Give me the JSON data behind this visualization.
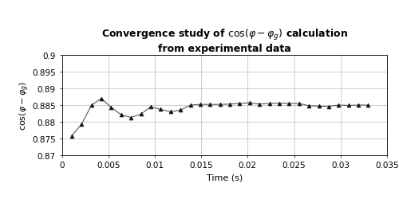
{
  "title": "Convergence study of cos(φ − φg) calculation\nfrom experimental data",
  "xlabel": "Time (s)",
  "xlim": [
    0,
    0.035
  ],
  "ylim": [
    0.87,
    0.9
  ],
  "xticks": [
    0,
    0.005,
    0.01,
    0.015,
    0.02,
    0.025,
    0.03,
    0.035
  ],
  "yticks": [
    0.87,
    0.875,
    0.88,
    0.885,
    0.89,
    0.895,
    0.9
  ],
  "line_color": "#555555",
  "marker_color": "#111111",
  "background_color": "#ffffff",
  "x_data": [
    0.001064,
    0.002128,
    0.003191,
    0.004255,
    0.005319,
    0.006383,
    0.007447,
    0.008511,
    0.009574,
    0.010638,
    0.011702,
    0.012766,
    0.01383,
    0.014894,
    0.015957,
    0.017021,
    0.018085,
    0.019149,
    0.020213,
    0.021277,
    0.02234,
    0.023404,
    0.024468,
    0.025532,
    0.026596,
    0.02766,
    0.028723,
    0.029787,
    0.030851,
    0.031915,
    0.032979
  ],
  "y_data": [
    0.8758,
    0.8793,
    0.885,
    0.887,
    0.8843,
    0.8821,
    0.8813,
    0.8823,
    0.8845,
    0.8837,
    0.883,
    0.8835,
    0.885,
    0.8852,
    0.8852,
    0.8852,
    0.8853,
    0.8855,
    0.8857,
    0.8853,
    0.8855,
    0.8856,
    0.8855,
    0.8855,
    0.8848,
    0.8847,
    0.8846,
    0.885,
    0.8849,
    0.885,
    0.885
  ],
  "title_fontsize": 9,
  "label_fontsize": 8,
  "tick_fontsize": 7.5
}
